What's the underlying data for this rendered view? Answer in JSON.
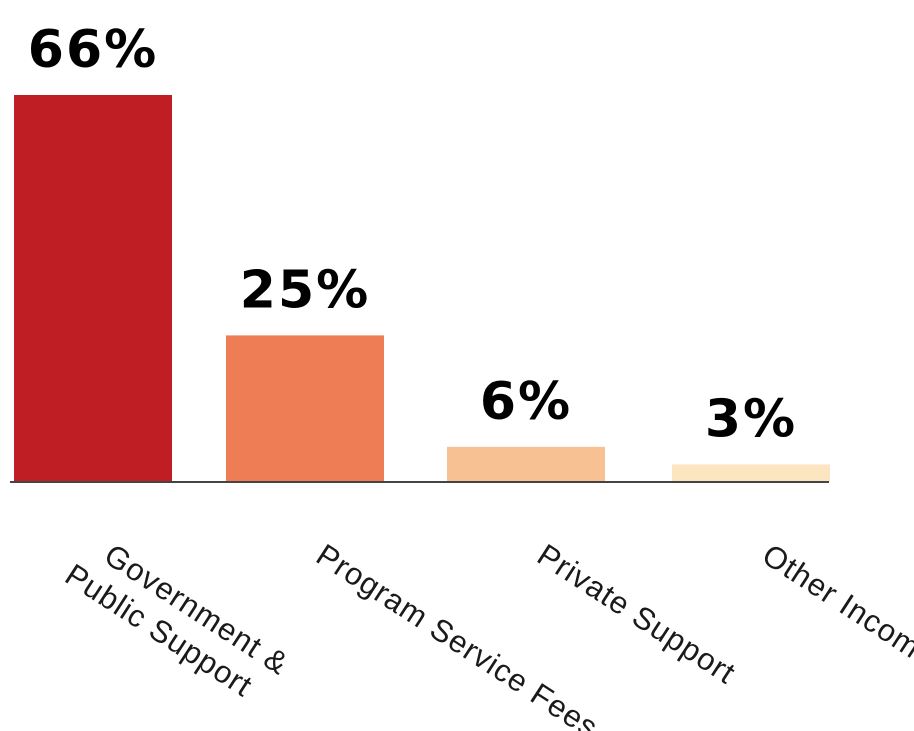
{
  "chart_data": {
    "type": "bar",
    "title": "",
    "xlabel": "",
    "ylabel": "",
    "ylim": [
      0,
      66
    ],
    "grid": false,
    "legend": "none",
    "categories": [
      [
        "Government &",
        "Public Support"
      ],
      [
        "Program Service Fees"
      ],
      [
        "Private Support"
      ],
      [
        "Other Income"
      ]
    ],
    "values": [
      66,
      25,
      6,
      3
    ],
    "value_labels": [
      "66%",
      "25%",
      "6%",
      "3%"
    ],
    "colors": [
      "#be1e24",
      "#ee7c55",
      "#f7c194",
      "#fce6c2"
    ]
  }
}
